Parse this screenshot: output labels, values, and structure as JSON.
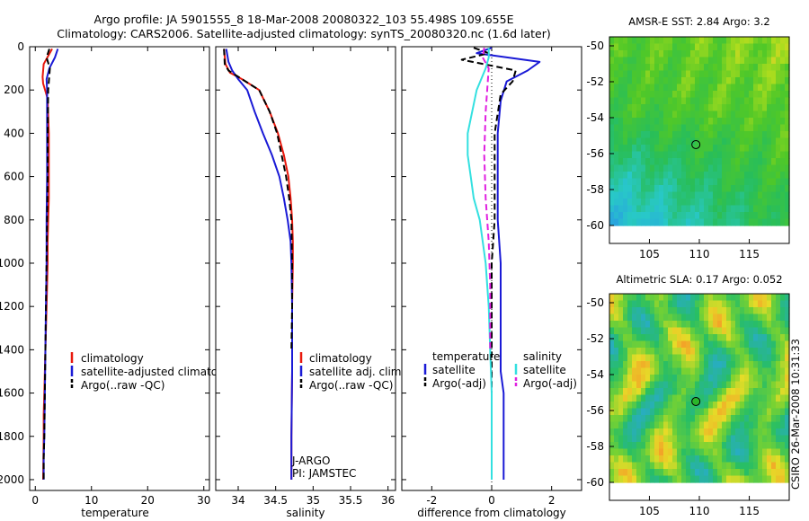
{
  "title": {
    "line1": "Argo profile: JA 5901555_8 18-Mar-2008 20080322_103 55.498S 109.655E",
    "line2": "Climatology: CARS2006. Satellite-adjusted climatology: synTS_20080320.nc (1.6d later)"
  },
  "side_label": "CSIRO 26-Mar-2008 10:31:33",
  "colors": {
    "red": "#e8180c",
    "blue": "#1a1ad6",
    "black": "#000000",
    "cyan": "#33e0e0",
    "magenta": "#e020e0"
  },
  "chart_data": [
    {
      "id": "temperature",
      "type": "line",
      "xlabel": "temperature",
      "ylabel": "",
      "xlim": [
        -1,
        31
      ],
      "ylim": [
        2050,
        0
      ],
      "xticks": [
        "0",
        "10",
        "20",
        "30"
      ],
      "xtick_values": [
        0,
        10,
        20,
        30
      ],
      "yticks": [
        "0",
        "200",
        "400",
        "600",
        "800",
        "1000",
        "1200",
        "1400",
        "1600",
        "1800",
        "2000"
      ],
      "ytick_values": [
        0,
        200,
        400,
        600,
        800,
        1000,
        1200,
        1400,
        1600,
        1800,
        2000
      ],
      "series": [
        {
          "name": "climatology",
          "color": "red",
          "dash": false,
          "x": [
            3.0,
            1.5,
            1.3,
            1.4,
            2.2,
            2.4,
            2.4,
            2.4,
            2.4,
            2.3,
            2.2,
            2.2,
            2.1,
            2.0,
            1.8,
            1.7,
            1.6,
            1.5,
            1.5,
            1.4
          ],
          "y": [
            10,
            80,
            140,
            170,
            240,
            400,
            500,
            600,
            700,
            800,
            900,
            1000,
            1100,
            1200,
            1400,
            1500,
            1600,
            1700,
            1800,
            2000
          ]
        },
        {
          "name": "satellite-adjusted climatology",
          "color": "blue",
          "dash": false,
          "x": [
            4.0,
            3.5,
            2.5,
            2.0,
            2.1,
            2.1,
            2.1,
            2.0,
            2.0,
            1.9,
            1.8,
            1.7,
            1.6,
            1.5,
            1.5
          ],
          "y": [
            10,
            50,
            100,
            150,
            200,
            400,
            600,
            800,
            1000,
            1200,
            1400,
            1600,
            1800,
            1900,
            2000
          ]
        },
        {
          "name": "Argo(..raw -QC)",
          "color": "black",
          "dash": true,
          "x": [
            2.5,
            2.0,
            2.6,
            2.3,
            2.2,
            2.2,
            2.1,
            2.0,
            1.9,
            1.8,
            1.7,
            1.6,
            1.5,
            1.5
          ],
          "y": [
            10,
            50,
            100,
            200,
            400,
            600,
            800,
            1000,
            1200,
            1400,
            1600,
            1800,
            1900,
            2000
          ]
        }
      ],
      "legend": {
        "items": [
          "climatology",
          "satellite-adjusted climatology",
          "Argo(..raw -QC)"
        ],
        "colors": [
          "red",
          "blue",
          "black"
        ],
        "placement": "lower-center"
      }
    },
    {
      "id": "salinity",
      "type": "line",
      "xlabel": "salinity",
      "ylabel": "",
      "xlim": [
        33.7,
        36.1
      ],
      "ylim": [
        2050,
        0
      ],
      "xticks": [
        "34",
        "34.5",
        "35",
        "35.5",
        "36"
      ],
      "xtick_values": [
        34,
        34.5,
        35,
        35.5,
        36
      ],
      "series": [
        {
          "name": "climatology",
          "color": "red",
          "dash": false,
          "x": [
            33.81,
            33.83,
            33.89,
            34.05,
            34.28,
            34.42,
            34.53,
            34.61,
            34.67,
            34.7,
            34.72,
            34.73,
            34.73,
            34.72,
            34.72,
            34.71,
            34.71
          ],
          "y": [
            10,
            80,
            120,
            150,
            200,
            300,
            400,
            500,
            600,
            700,
            800,
            900,
            1000,
            1200,
            1500,
            1800,
            2000
          ]
        },
        {
          "name": "satellite adj. clim.",
          "color": "blue",
          "dash": false,
          "x": [
            33.84,
            33.87,
            33.92,
            34.0,
            34.12,
            34.22,
            34.33,
            34.45,
            34.55,
            34.61,
            34.66,
            34.7,
            34.71,
            34.72,
            34.72,
            34.71,
            34.71
          ],
          "y": [
            10,
            70,
            110,
            150,
            200,
            300,
            400,
            500,
            600,
            700,
            800,
            900,
            1000,
            1200,
            1500,
            1800,
            2000
          ]
        },
        {
          "name": "Argo(..raw -QC)",
          "color": "black",
          "dash": true,
          "x": [
            33.81,
            33.82,
            33.87,
            34.05,
            34.28,
            34.42,
            34.52,
            34.58,
            34.64,
            34.68,
            34.71,
            34.72,
            34.72,
            34.71
          ],
          "y": [
            10,
            80,
            110,
            150,
            200,
            300,
            400,
            500,
            600,
            700,
            800,
            1000,
            1200,
            1400
          ]
        }
      ],
      "legend": {
        "items": [
          "climatology",
          "satellite adj. clim.",
          "Argo(..raw -QC)"
        ],
        "colors": [
          "red",
          "blue",
          "black"
        ],
        "placement": "lower-center"
      },
      "annotations": [
        "J-ARGO",
        "PI: JAMSTEC"
      ]
    },
    {
      "id": "difference",
      "type": "line",
      "xlabel": "difference from climatology",
      "ylabel": "",
      "xlim": [
        -3,
        3
      ],
      "ylim": [
        2050,
        0
      ],
      "xticks": [
        "-2",
        "0",
        "2"
      ],
      "xtick_values": [
        -2,
        0,
        2
      ],
      "series": [
        {
          "name": "satellite temperature",
          "color": "blue",
          "dash": false,
          "x": [
            0.0,
            -0.5,
            1.6,
            1.2,
            0.5,
            0.3,
            0.2,
            0.2,
            0.2,
            0.3,
            0.3,
            0.3,
            0.3,
            0.4,
            0.4,
            0.4,
            0.4
          ],
          "y": [
            5,
            30,
            70,
            110,
            160,
            250,
            400,
            600,
            800,
            1000,
            1200,
            1400,
            1500,
            1600,
            1800,
            1900,
            2000
          ]
        },
        {
          "name": "Argo(-adj) temperature",
          "color": "black",
          "dash": true,
          "x": [
            -0.6,
            -0.1,
            -1.0,
            0.8,
            0.7,
            0.3,
            0.1,
            0.1,
            0.1,
            0.0,
            0.0,
            0.0,
            0.0
          ],
          "y": [
            5,
            30,
            60,
            110,
            160,
            220,
            400,
            600,
            800,
            1000,
            1200,
            1400,
            2000
          ]
        },
        {
          "name": "satellite salinity",
          "color": "cyan",
          "dash": false,
          "x": [
            -0.1,
            -0.1,
            -0.2,
            -0.5,
            -0.8,
            -0.8,
            -0.7,
            -0.6,
            -0.4,
            -0.2,
            -0.1,
            -0.05,
            0.0,
            0.0
          ],
          "y": [
            5,
            50,
            100,
            200,
            400,
            500,
            600,
            700,
            800,
            1000,
            1200,
            1400,
            1600,
            2000
          ]
        },
        {
          "name": "Argo(-adj) salinity",
          "color": "magenta",
          "dash": true,
          "x": [
            -0.25,
            -0.3,
            -0.1,
            -0.2,
            -0.25,
            -0.2,
            -0.1,
            -0.05,
            -0.05,
            -0.05
          ],
          "y": [
            5,
            50,
            100,
            300,
            500,
            700,
            900,
            1100,
            1300,
            1400
          ]
        }
      ],
      "legend_temperature": {
        "title": "temperature",
        "items": [
          "satellite",
          "Argo(-adj)"
        ],
        "colors": [
          "blue",
          "black"
        ]
      },
      "legend_salinity": {
        "title": "salinity",
        "items": [
          "satellite",
          "Argo(-adj)"
        ],
        "colors": [
          "cyan",
          "magenta"
        ]
      }
    },
    {
      "id": "amsre-sst-map",
      "type": "heatmap",
      "title": "AMSR-E SST: 2.84 Argo: 3.2",
      "xlim": [
        101,
        119
      ],
      "ylim": [
        -61,
        -49.5
      ],
      "data_extent": {
        "lon": [
          101,
          119
        ],
        "lat": [
          -60,
          -49.5
        ]
      },
      "xticks": [
        "105",
        "110",
        "115"
      ],
      "xtick_values": [
        105,
        110,
        115
      ],
      "yticks": [
        "-50",
        "-52",
        "-54",
        "-56",
        "-58",
        "-60"
      ],
      "ytick_values": [
        -50,
        -52,
        -54,
        -56,
        -58,
        -60
      ],
      "marker": {
        "lon": 109.655,
        "lat": -55.498
      }
    },
    {
      "id": "altimetric-sla-map",
      "type": "heatmap",
      "title": "Altimetric SLA: 0.17 Argo: 0.052",
      "xlim": [
        101,
        119
      ],
      "ylim": [
        -61,
        -49.5
      ],
      "data_extent": {
        "lon": [
          101,
          119
        ],
        "lat": [
          -60,
          -49.5
        ]
      },
      "xticks": [
        "105",
        "110",
        "115"
      ],
      "xtick_values": [
        105,
        110,
        115
      ],
      "yticks": [
        "-50",
        "-52",
        "-54",
        "-56",
        "-58",
        "-60"
      ],
      "ytick_values": [
        -50,
        -52,
        -54,
        -56,
        -58,
        -60
      ],
      "marker": {
        "lon": 109.655,
        "lat": -55.498
      }
    }
  ]
}
